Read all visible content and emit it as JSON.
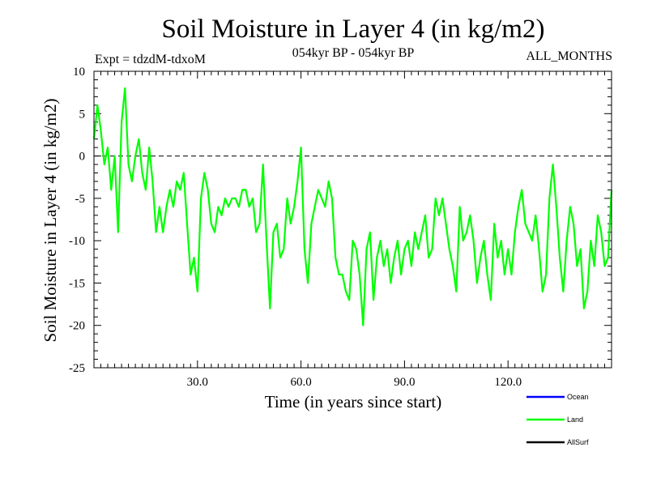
{
  "chart_data": {
    "type": "line",
    "title": "Soil Moisture in Layer 4 (in kg/m2)",
    "subtitle_left": "Expt = tdzdM-tdxoM",
    "subtitle_center": "054kyr BP - 054kyr BP",
    "subtitle_right": "ALL_MONTHS",
    "xlabel": "Time (in years since start)",
    "ylabel": "Soil Moisture in Layer 4 (in kg/m2)",
    "xlim": [
      0,
      150
    ],
    "ylim": [
      -25,
      10
    ],
    "xticks": [
      30,
      60,
      90,
      120
    ],
    "xtick_labels": [
      "30.0",
      "60.0",
      "90.0",
      "120.0"
    ],
    "yticks": [
      -25,
      -20,
      -15,
      -10,
      -5,
      0,
      5,
      10
    ],
    "ytick_labels": [
      "-25",
      "-20",
      "-15",
      "-10",
      "-5",
      "0",
      "5",
      "10"
    ],
    "zero_line": 0,
    "legend_position": "bottom-right",
    "legend": [
      {
        "name": "Ocean",
        "color": "#0000ff"
      },
      {
        "name": "Land",
        "color": "#00ff00"
      },
      {
        "name": "AllSurf",
        "color": "#000000"
      }
    ],
    "series": [
      {
        "name": "Land",
        "color": "#00ff00",
        "x": [
          0,
          1,
          2,
          3,
          4,
          5,
          6,
          7,
          8,
          9,
          10,
          11,
          12,
          13,
          14,
          15,
          16,
          17,
          18,
          19,
          20,
          21,
          22,
          23,
          24,
          25,
          26,
          27,
          28,
          29,
          30,
          31,
          32,
          33,
          34,
          35,
          36,
          37,
          38,
          39,
          40,
          41,
          42,
          43,
          44,
          45,
          46,
          47,
          48,
          49,
          50,
          51,
          52,
          53,
          54,
          55,
          56,
          57,
          58,
          59,
          60,
          61,
          62,
          63,
          64,
          65,
          66,
          67,
          68,
          69,
          70,
          71,
          72,
          73,
          74,
          75,
          76,
          77,
          78,
          79,
          80,
          81,
          82,
          83,
          84,
          85,
          86,
          87,
          88,
          89,
          90,
          91,
          92,
          93,
          94,
          95,
          96,
          97,
          98,
          99,
          100,
          101,
          102,
          103,
          104,
          105,
          106,
          107,
          108,
          109,
          110,
          111,
          112,
          113,
          114,
          115,
          116,
          117,
          118,
          119,
          120,
          121,
          122,
          123,
          124,
          125,
          126,
          127,
          128,
          129,
          130,
          131,
          132,
          133,
          134,
          135,
          136,
          137,
          138,
          139,
          140,
          141,
          142,
          143,
          144,
          145,
          146,
          147,
          148,
          149,
          150
        ],
        "values": [
          2,
          6,
          3,
          -1,
          1,
          -4,
          0,
          -9,
          4,
          8,
          -1,
          -3,
          0,
          2,
          -2,
          -4,
          1,
          -3,
          -9,
          -6,
          -9,
          -6,
          -4,
          -6,
          -3,
          -4,
          -2,
          -8,
          -14,
          -12,
          -16,
          -5,
          -2,
          -4,
          -8,
          -9,
          -6,
          -7,
          -5,
          -6,
          -5,
          -5,
          -6,
          -4,
          -4,
          -6,
          -5,
          -9,
          -8,
          -1,
          -10,
          -18,
          -9,
          -8,
          -12,
          -11,
          -5,
          -8,
          -6,
          -3,
          1,
          -11,
          -15,
          -8,
          -6,
          -4,
          -5,
          -6,
          -3,
          -5,
          -12,
          -14,
          -14,
          -16,
          -17,
          -10,
          -11,
          -14,
          -20,
          -11,
          -9,
          -17,
          -12,
          -10,
          -13,
          -11,
          -15,
          -12,
          -10,
          -14,
          -11,
          -10,
          -13,
          -9,
          -11,
          -9,
          -7,
          -12,
          -11,
          -5,
          -7,
          -5,
          -8,
          -11,
          -13,
          -16,
          -6,
          -10,
          -9,
          -7,
          -10,
          -15,
          -12,
          -10,
          -14,
          -17,
          -8,
          -12,
          -10,
          -14,
          -11,
          -14,
          -9,
          -6,
          -4,
          -8,
          -9,
          -10,
          -7,
          -11,
          -16,
          -14,
          -5,
          -1,
          -6,
          -12,
          -16,
          -10,
          -6,
          -8,
          -13,
          -11,
          -18,
          -16,
          -10,
          -13,
          -7,
          -9,
          -13,
          -12,
          -4
        ]
      }
    ]
  }
}
